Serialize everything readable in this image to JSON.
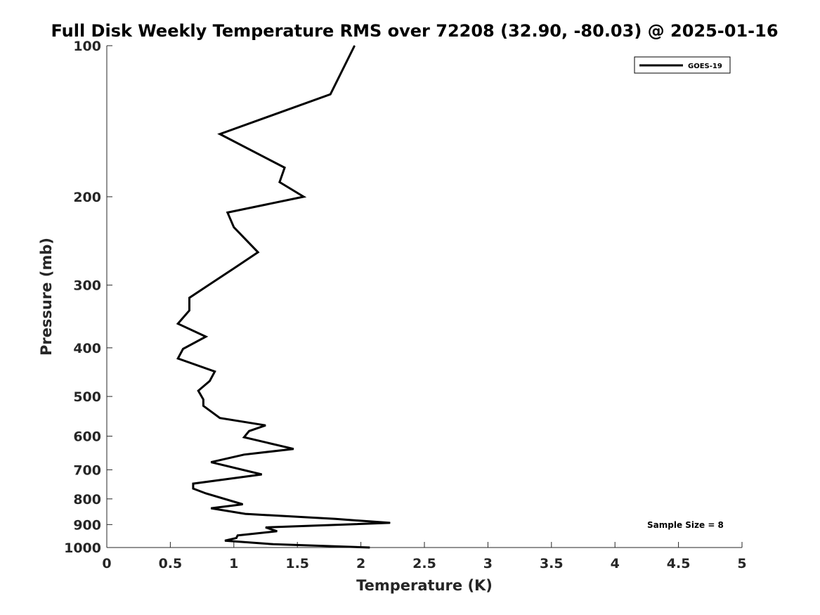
{
  "chart_data": {
    "type": "line",
    "title": "Full Disk Weekly Temperature RMS over 72208 (32.90, -80.03) @ 2025-01-16",
    "xlabel": "Temperature (K)",
    "ylabel": "Pressure (mb)",
    "xlim": [
      0,
      5
    ],
    "ylim": [
      100,
      1000
    ],
    "yscale": "log",
    "y_reversed": true,
    "x_ticks": [
      0,
      0.5,
      1,
      1.5,
      2,
      2.5,
      3,
      3.5,
      4,
      4.5,
      5
    ],
    "x_tick_labels": [
      "0",
      "0.5",
      "1",
      "1.5",
      "2",
      "2.5",
      "3",
      "3.5",
      "4",
      "4.5",
      "5"
    ],
    "y_ticks": [
      100,
      200,
      300,
      400,
      500,
      600,
      700,
      800,
      900,
      1000
    ],
    "y_tick_labels": [
      "100",
      "200",
      "300",
      "400",
      "500",
      "600",
      "700",
      "800",
      "900",
      "1000"
    ],
    "grid": false,
    "legend_position": "top-right",
    "annotation": "Sample Size = 8",
    "series": [
      {
        "name": "GOES-19",
        "color": "#000000",
        "points": [
          [
            1.95,
            100
          ],
          [
            1.76,
            125
          ],
          [
            0.89,
            150
          ],
          [
            1.4,
            175
          ],
          [
            1.36,
            187
          ],
          [
            1.55,
            200
          ],
          [
            0.95,
            215
          ],
          [
            1.0,
            230
          ],
          [
            1.19,
            258
          ],
          [
            0.98,
            280
          ],
          [
            0.8,
            300
          ],
          [
            0.65,
            318
          ],
          [
            0.65,
            337
          ],
          [
            0.56,
            358
          ],
          [
            0.78,
            380
          ],
          [
            0.6,
            402
          ],
          [
            0.56,
            420
          ],
          [
            0.85,
            446
          ],
          [
            0.81,
            466
          ],
          [
            0.72,
            487
          ],
          [
            0.76,
            507
          ],
          [
            0.76,
            522
          ],
          [
            0.89,
            552
          ],
          [
            1.25,
            571
          ],
          [
            1.12,
            586
          ],
          [
            1.08,
            603
          ],
          [
            1.47,
            636
          ],
          [
            1.08,
            653
          ],
          [
            0.82,
            676
          ],
          [
            1.22,
            715
          ],
          [
            0.68,
            746
          ],
          [
            0.68,
            763
          ],
          [
            0.78,
            780
          ],
          [
            1.07,
            820
          ],
          [
            0.82,
            835
          ],
          [
            1.09,
            857
          ],
          [
            1.8,
            877
          ],
          [
            2.23,
            893
          ],
          [
            1.25,
            912
          ],
          [
            1.34,
            928
          ],
          [
            1.03,
            946
          ],
          [
            1.02,
            957
          ],
          [
            0.93,
            969
          ],
          [
            1.31,
            985
          ],
          [
            2.07,
            1000
          ]
        ]
      }
    ]
  }
}
